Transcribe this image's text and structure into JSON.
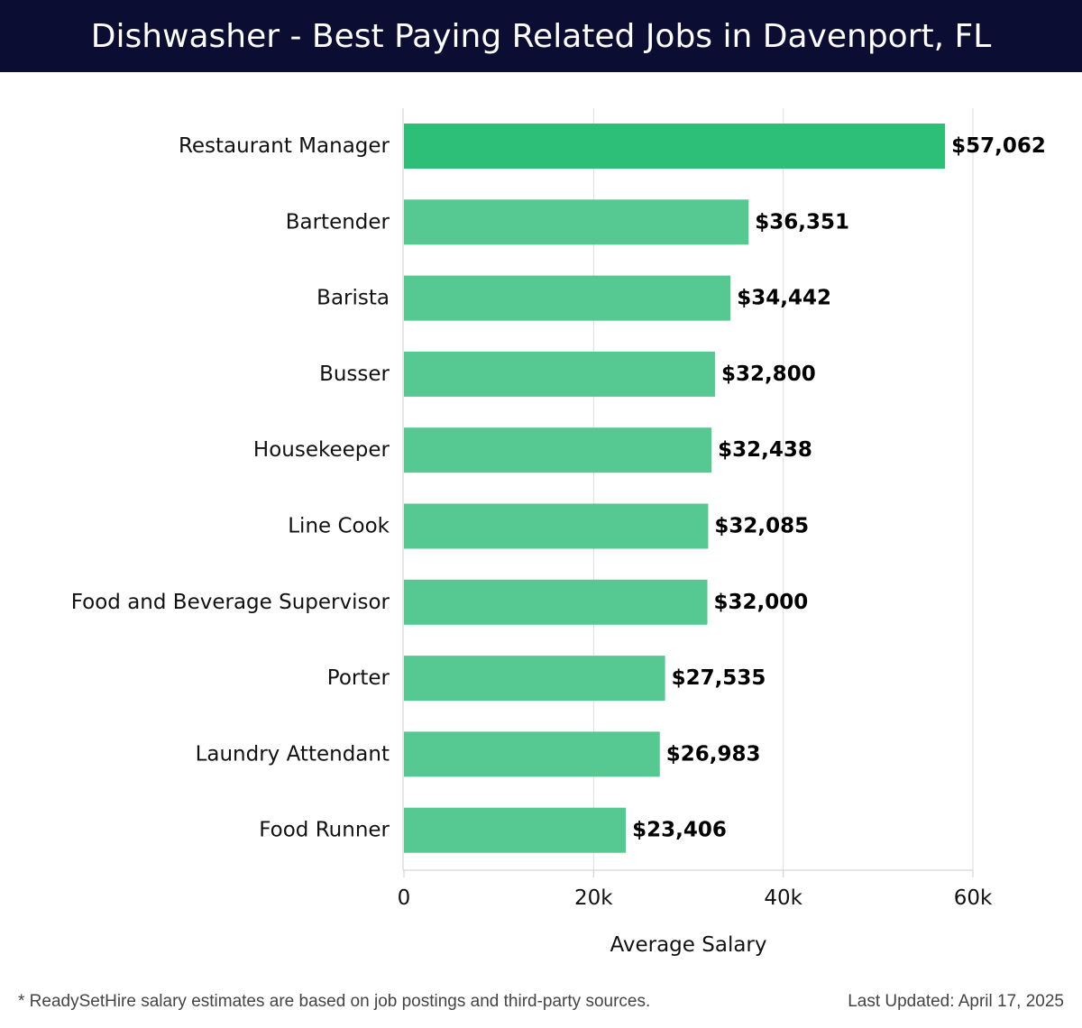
{
  "header": {
    "title": "Dishwasher - Best Paying Related Jobs in Davenport, FL"
  },
  "chart_data": {
    "type": "bar",
    "orientation": "horizontal",
    "title": "Dishwasher - Best Paying Related Jobs in Davenport, FL",
    "xlabel": "Average Salary",
    "ylabel": "",
    "xlim": [
      0,
      60000
    ],
    "x_ticks": [
      {
        "value": 0,
        "label": "0"
      },
      {
        "value": 20000,
        "label": "20k"
      },
      {
        "value": 40000,
        "label": "40k"
      },
      {
        "value": 60000,
        "label": "60k"
      }
    ],
    "grid": true,
    "categories": [
      "Restaurant Manager",
      "Bartender",
      "Barista",
      "Busser",
      "Housekeeper",
      "Line Cook",
      "Food and Beverage Supervisor",
      "Porter",
      "Laundry Attendant",
      "Food Runner"
    ],
    "values": [
      57062,
      36351,
      34442,
      32800,
      32438,
      32085,
      32000,
      27535,
      26983,
      23406
    ],
    "value_labels": [
      "$57,062",
      "$36,351",
      "$34,442",
      "$32,800",
      "$32,438",
      "$32,085",
      "$32,000",
      "$27,535",
      "$26,983",
      "$23,406"
    ],
    "colors": {
      "top_bar": "#2dbe78",
      "bar": "#4cc68b",
      "grid": "#dddddd",
      "axis": "#cccccc",
      "text": "#111111"
    }
  },
  "footer": {
    "note": "* ReadySetHire salary estimates are based on job postings and third-party sources.",
    "updated": "Last Updated: April 17, 2025"
  }
}
